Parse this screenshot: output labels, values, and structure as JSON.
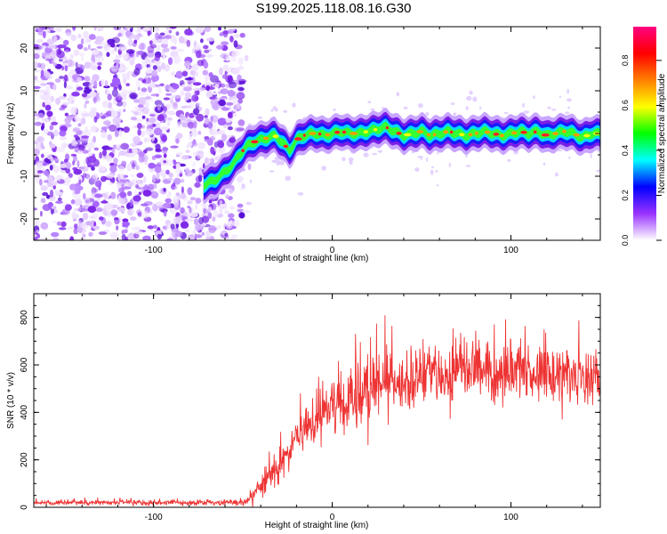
{
  "title": "S199.2025.118.08.16.G30",
  "chart_data": [
    {
      "type": "heatmap",
      "title": "S199.2025.118.08.16.G30",
      "xlabel": "Height of straight line (km)",
      "ylabel": "Frequency (Hz)",
      "xlim": [
        -167,
        150
      ],
      "ylim": [
        -25,
        25
      ],
      "xticks": [
        -100,
        0,
        100
      ],
      "yticks": [
        -20,
        -10,
        0,
        10,
        20
      ],
      "noise_region_x": [
        -167,
        -50
      ],
      "ridge": {
        "x": [
          -72,
          -66,
          -60,
          -55,
          -52,
          -48,
          -44,
          -40,
          -36,
          -32,
          -28,
          -24,
          -20,
          -16,
          -12,
          -8,
          -4,
          0,
          5,
          10,
          15,
          20,
          25,
          30,
          35,
          40,
          45,
          50,
          55,
          60,
          65,
          70,
          75,
          80,
          85,
          90,
          95,
          100,
          105,
          110,
          115,
          120,
          125,
          130,
          135,
          140,
          145,
          150
        ],
        "y": [
          -12,
          -11,
          -9,
          -7,
          -5,
          -3,
          -2,
          -1.5,
          -1,
          -0.5,
          -2,
          -4,
          -1.5,
          -0.5,
          0,
          0,
          -0.5,
          0,
          0.5,
          0,
          0,
          0.5,
          1,
          1.5,
          0.5,
          -0.5,
          0,
          0.5,
          -0.5,
          0,
          0.5,
          0,
          -0.5,
          0,
          0.5,
          0,
          -0.5,
          0,
          0.5,
          0,
          0.5,
          -0.5,
          0,
          0.5,
          0,
          -1,
          0,
          0
        ]
      },
      "colorbar": {
        "label": "Normalized spectral amplitude",
        "range": [
          0.0,
          0.95
        ],
        "ticks": [
          0.0,
          0.2,
          0.4,
          0.6,
          0.8
        ],
        "tick_labels": [
          "0.0",
          "0.2",
          "0.4",
          "0.6",
          "0.8"
        ],
        "colors": [
          "#ffffff",
          "#9933ff",
          "#0000ff",
          "#00ffff",
          "#00ff00",
          "#ffff00",
          "#ff7f00",
          "#ff0000",
          "#ff0080"
        ]
      }
    },
    {
      "type": "line",
      "xlabel": "Height of straight line (km)",
      "ylabel": "SNR (10 * v/v)",
      "xlim": [
        -167,
        150
      ],
      "ylim": [
        0,
        900
      ],
      "xticks": [
        -100,
        0,
        100
      ],
      "yticks": [
        0,
        200,
        400,
        600,
        800
      ],
      "color": "#ee3333",
      "mean_snr": {
        "x": [
          -167,
          -60,
          -48,
          -44,
          -40,
          -35,
          -30,
          -25,
          -20,
          -15,
          -10,
          -5,
          0,
          10,
          20,
          30,
          40,
          50,
          60,
          70,
          80,
          90,
          100,
          110,
          120,
          130,
          140,
          150
        ],
        "y": [
          20,
          20,
          20,
          50,
          90,
          140,
          190,
          240,
          290,
          330,
          370,
          400,
          420,
          460,
          500,
          520,
          540,
          550,
          560,
          565,
          570,
          570,
          570,
          565,
          560,
          555,
          550,
          550
        ]
      },
      "noise_amplitude": {
        "x": [
          -167,
          -50,
          -40,
          -30,
          -20,
          -10,
          0,
          20,
          40,
          60,
          80,
          100,
          120,
          140,
          150
        ],
        "y": [
          10,
          10,
          60,
          80,
          90,
          100,
          110,
          120,
          120,
          120,
          115,
          110,
          110,
          110,
          110
        ]
      }
    }
  ]
}
